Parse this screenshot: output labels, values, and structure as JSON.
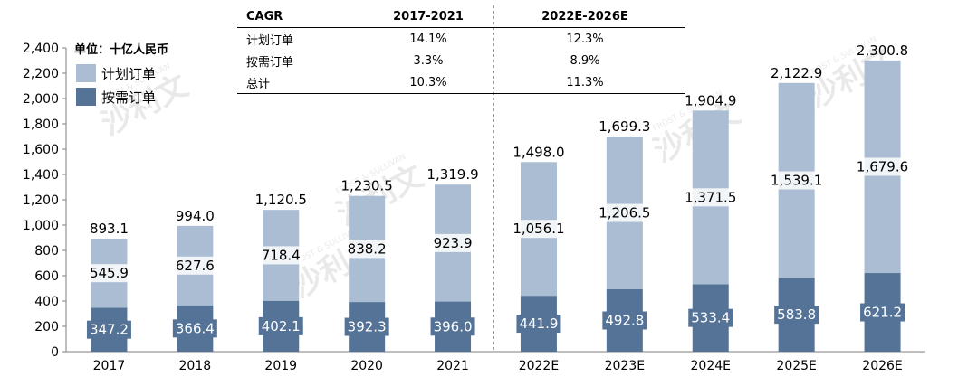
{
  "unit_label": "单位：十亿人民币",
  "legend": [
    {
      "name": "计划订单",
      "color": "#aabdd2"
    },
    {
      "name": "按需订单",
      "color": "#557397"
    }
  ],
  "cagr_table": {
    "headers": [
      "CAGR",
      "2017-2021",
      "2022E-2026E"
    ],
    "rows": [
      {
        "label": "计划订单",
        "v1": "14.1%",
        "v2": "12.3%"
      },
      {
        "label": "按需订单",
        "v1": "3.3%",
        "v2": "8.9%"
      },
      {
        "label": "总计",
        "v1": "10.3%",
        "v2": "11.3%"
      }
    ]
  },
  "chart_data": {
    "type": "bar",
    "stacked": true,
    "categories": [
      "2017",
      "2018",
      "2019",
      "2020",
      "2021",
      "2022E",
      "2023E",
      "2024E",
      "2025E",
      "2026E"
    ],
    "series": [
      {
        "name": "按需订单",
        "color": "#557397",
        "values": [
          347.2,
          366.4,
          402.1,
          392.3,
          396.0,
          441.9,
          492.8,
          533.4,
          583.8,
          621.2
        ],
        "labels": [
          "347.2",
          "366.4",
          "402.1",
          "392.3",
          "396.0",
          "441.9",
          "492.8",
          "533.4",
          "583.8",
          "621.2"
        ]
      },
      {
        "name": "计划订单",
        "color": "#aabdd2",
        "values": [
          545.9,
          627.6,
          718.4,
          838.2,
          923.9,
          1056.1,
          1206.5,
          1371.5,
          1539.1,
          1679.6
        ],
        "labels": [
          "545.9",
          "627.6",
          "718.4",
          "838.2",
          "923.9",
          "1,056.1",
          "1,206.5",
          "1,371.5",
          "1,539.1",
          "1,679.6"
        ]
      }
    ],
    "totals": [
      893.1,
      994.0,
      1120.5,
      1230.5,
      1319.9,
      1498.0,
      1699.3,
      1904.9,
      2122.9,
      2300.8
    ],
    "total_labels": [
      "893.1",
      "994.0",
      "1,120.5",
      "1,230.5",
      "1,319.9",
      "1,498.0",
      "1,699.3",
      "1,904.9",
      "2,122.9",
      "2,300.8"
    ],
    "ylim": [
      0,
      2400
    ],
    "yticks": [
      0,
      200,
      400,
      600,
      800,
      1000,
      1200,
      1400,
      1600,
      1800,
      2000,
      2200,
      2400
    ],
    "ytick_labels": [
      "0",
      "200",
      "400",
      "600",
      "800",
      "1,000",
      "1,200",
      "1,400",
      "1,600",
      "1,800",
      "2,000",
      "2,200",
      "2,400"
    ],
    "xlabel": "",
    "ylabel": "",
    "grid": false,
    "legend_position": "top-left"
  },
  "watermark": {
    "brand": "沙利文",
    "en": "FROST & SULLIVAN"
  }
}
